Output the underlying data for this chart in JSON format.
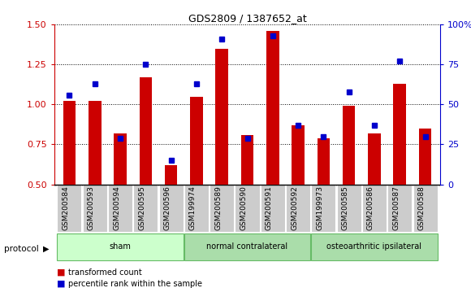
{
  "title": "GDS2809 / 1387652_at",
  "categories": [
    "GSM200584",
    "GSM200593",
    "GSM200594",
    "GSM200595",
    "GSM200596",
    "GSM199974",
    "GSM200589",
    "GSM200590",
    "GSM200591",
    "GSM200592",
    "GSM199973",
    "GSM200585",
    "GSM200586",
    "GSM200587",
    "GSM200588"
  ],
  "red_values": [
    1.02,
    1.02,
    0.82,
    1.17,
    0.62,
    1.05,
    1.35,
    0.81,
    1.46,
    0.87,
    0.79,
    0.99,
    0.82,
    1.13,
    0.85
  ],
  "blue_left_values": [
    1.06,
    1.13,
    0.79,
    1.25,
    0.65,
    1.13,
    1.41,
    0.79,
    1.43,
    0.87,
    0.8,
    1.08,
    0.87,
    1.27,
    0.8
  ],
  "blue_percentiles": [
    55,
    62,
    27,
    70,
    17,
    60,
    88,
    28,
    90,
    32,
    29,
    55,
    44,
    78,
    29
  ],
  "group_info": [
    {
      "label": "sham",
      "start": 0,
      "end": 4,
      "color": "#ccffcc"
    },
    {
      "label": "normal contralateral",
      "start": 5,
      "end": 9,
      "color": "#aaddaa"
    },
    {
      "label": "osteoarthritic ipsilateral",
      "start": 10,
      "end": 14,
      "color": "#aaddaa"
    }
  ],
  "ylim_left": [
    0.5,
    1.5
  ],
  "ylim_right": [
    0,
    100
  ],
  "yticks_left": [
    0.5,
    0.75,
    1.0,
    1.25,
    1.5
  ],
  "yticks_right": [
    0,
    25,
    50,
    75,
    100
  ],
  "ytick_labels_right": [
    "0",
    "25",
    "50",
    "75",
    "100%"
  ],
  "red_color": "#cc0000",
  "blue_color": "#0000cc",
  "bar_width": 0.5,
  "protocol_label": "protocol",
  "legend_red": "transformed count",
  "legend_blue": "percentile rank within the sample",
  "bg_color": "#ffffff",
  "tick_area_color": "#cccccc",
  "baseline": 0.5
}
